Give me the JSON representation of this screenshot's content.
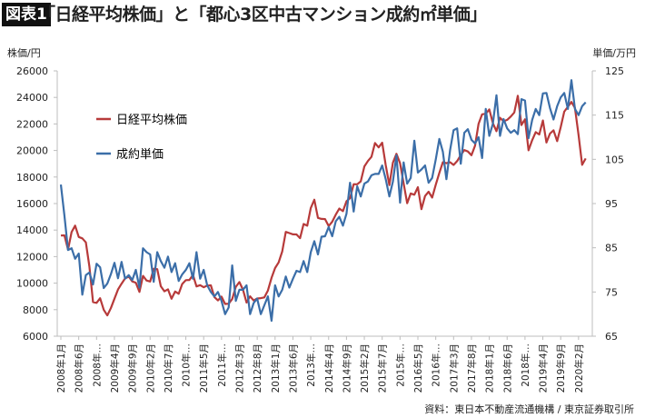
{
  "header": {
    "badge": "図表1",
    "title": "「日経平均株価」と「都心3区中古マンション成約㎡単価」"
  },
  "source": "資料：東日本不動産流通機構 / 東京証券取引所",
  "colors": {
    "nikkei": "#b73a3a",
    "condo": "#3b6ea8",
    "axis": "#bdbdbd"
  },
  "chart_data": {
    "type": "line",
    "title": "「日経平均株価」と「都心3区中古マンション成約㎡単価」",
    "ylabel_left": "株価/円",
    "ylabel_right": "単価/万円",
    "ylim_left": [
      6000,
      26000
    ],
    "ylim_right": [
      65,
      125
    ],
    "yticks_left": [
      "6000",
      "8000",
      "10000",
      "12000",
      "14000",
      "16000",
      "18000",
      "20000",
      "22000",
      "24000",
      "26000"
    ],
    "yticks_right": [
      "65",
      "75",
      "85",
      "95",
      "105",
      "115",
      "125"
    ],
    "x_start": "2008年1月",
    "x_end": "2020年4月",
    "xtick_step_months": 5,
    "xticks": [
      "2008年1月",
      "2008年6月",
      "2008年…",
      "2009年4月",
      "2009年9月",
      "2010年2月",
      "2010年7月",
      "2010年…",
      "2011年5月",
      "2011年…",
      "2012年3月",
      "2012年8月",
      "2013年1月",
      "2013年6月",
      "2013年…",
      "2014年4月",
      "2014年9月",
      "2015年2月",
      "2015年7月",
      "2015年…",
      "2016年5月",
      "2016年…",
      "2017年3月",
      "2017年8月",
      "2018年1月",
      "2018年6月",
      "2018年…",
      "2019年4月",
      "2019年9月",
      "2020年2月"
    ],
    "grid": false,
    "legend_placement": "top-left",
    "series": [
      {
        "name": "日経平均株価",
        "axis": "left",
        "values": [
          13592,
          13603,
          12526,
          13850,
          14339,
          13481,
          13377,
          13072,
          11260,
          8577,
          8512,
          8860,
          7994,
          7568,
          8110,
          8828,
          9523,
          9958,
          10357,
          10493,
          10133,
          10035,
          9345,
          10546,
          10198,
          10126,
          11090,
          11057,
          9769,
          9383,
          9537,
          8824,
          9369,
          9202,
          9937,
          10229,
          10238,
          10624,
          9755,
          9850,
          9694,
          9816,
          9833,
          8955,
          8700,
          8988,
          8434,
          8455,
          8803,
          9723,
          10084,
          9521,
          8543,
          9007,
          8695,
          8840,
          8870,
          8928,
          9446,
          10395,
          11139,
          11559,
          12398,
          13861,
          13775,
          13677,
          13668,
          13389,
          14456,
          14328,
          15662,
          16291,
          14915,
          14841,
          14828,
          14304,
          14632,
          15162,
          15621,
          15425,
          16174,
          16414,
          17460,
          17451,
          17674,
          18798,
          19207,
          19520,
          20563,
          20236,
          20585,
          18890,
          17388,
          19083,
          19747,
          19034,
          17518,
          16027,
          16759,
          16666,
          17235,
          15576,
          16569,
          16887,
          16450,
          17425,
          18308,
          19114,
          19041,
          19119,
          18909,
          19197,
          19651,
          20033,
          19925,
          19646,
          20356,
          22012,
          22725,
          22765,
          23098,
          22068,
          21454,
          22468,
          22202,
          22305,
          22554,
          22865,
          24120,
          21920,
          22351,
          20015,
          20773,
          21385,
          21206,
          22259,
          20601,
          21276,
          21522,
          20704,
          21756,
          22927,
          23294,
          23657,
          23205,
          21143,
          18917,
          19400
        ]
      },
      {
        "name": "成約単価",
        "axis": "right",
        "values": [
          99.3,
          92.3,
          84.5,
          84.9,
          82.5,
          83.7,
          74.4,
          78.8,
          79.4,
          76.7,
          81.4,
          80.6,
          75.9,
          76.9,
          79,
          81.6,
          78.1,
          81.8,
          78,
          78.8,
          77.7,
          80,
          76,
          84.9,
          84,
          83.5,
          77.3,
          84,
          82,
          80.5,
          83,
          79.5,
          81.5,
          77.5,
          79,
          80,
          81.5,
          78,
          84,
          78,
          80,
          76.5,
          75,
          74,
          75,
          73,
          70,
          71.5,
          81,
          73,
          75.5,
          75.5,
          76.5,
          70,
          72.5,
          73.5,
          70,
          72,
          74,
          68.5,
          76.5,
          74,
          75.5,
          78.5,
          76,
          78,
          79.8,
          79.5,
          82,
          79.5,
          84,
          86.5,
          83.5,
          87.5,
          87.6,
          89.7,
          87.6,
          91,
          92,
          90,
          92.7,
          99.7,
          93.2,
          98.9,
          96.6,
          99.5,
          100,
          101.4,
          101.7,
          101.7,
          103.6,
          100.5,
          96.6,
          100,
          105.9,
          95.2,
          104.3,
          99.5,
          100.8,
          109.2,
          102,
          102.7,
          103.6,
          99.7,
          100.8,
          105,
          109.6,
          106.7,
          100.5,
          107,
          111.6,
          112,
          104,
          111,
          111.8,
          109.4,
          108.6,
          110,
          105.3,
          116.4,
          110.3,
          113,
          119.5,
          110.3,
          114.1,
          112,
          111,
          111.6,
          110.7,
          118.6,
          118.3,
          109.8,
          113.9,
          116.4,
          115,
          119.9,
          120,
          116.6,
          114,
          117,
          119,
          120,
          116.4,
          122.9,
          116.4,
          115,
          117,
          117.9
        ]
      }
    ]
  }
}
